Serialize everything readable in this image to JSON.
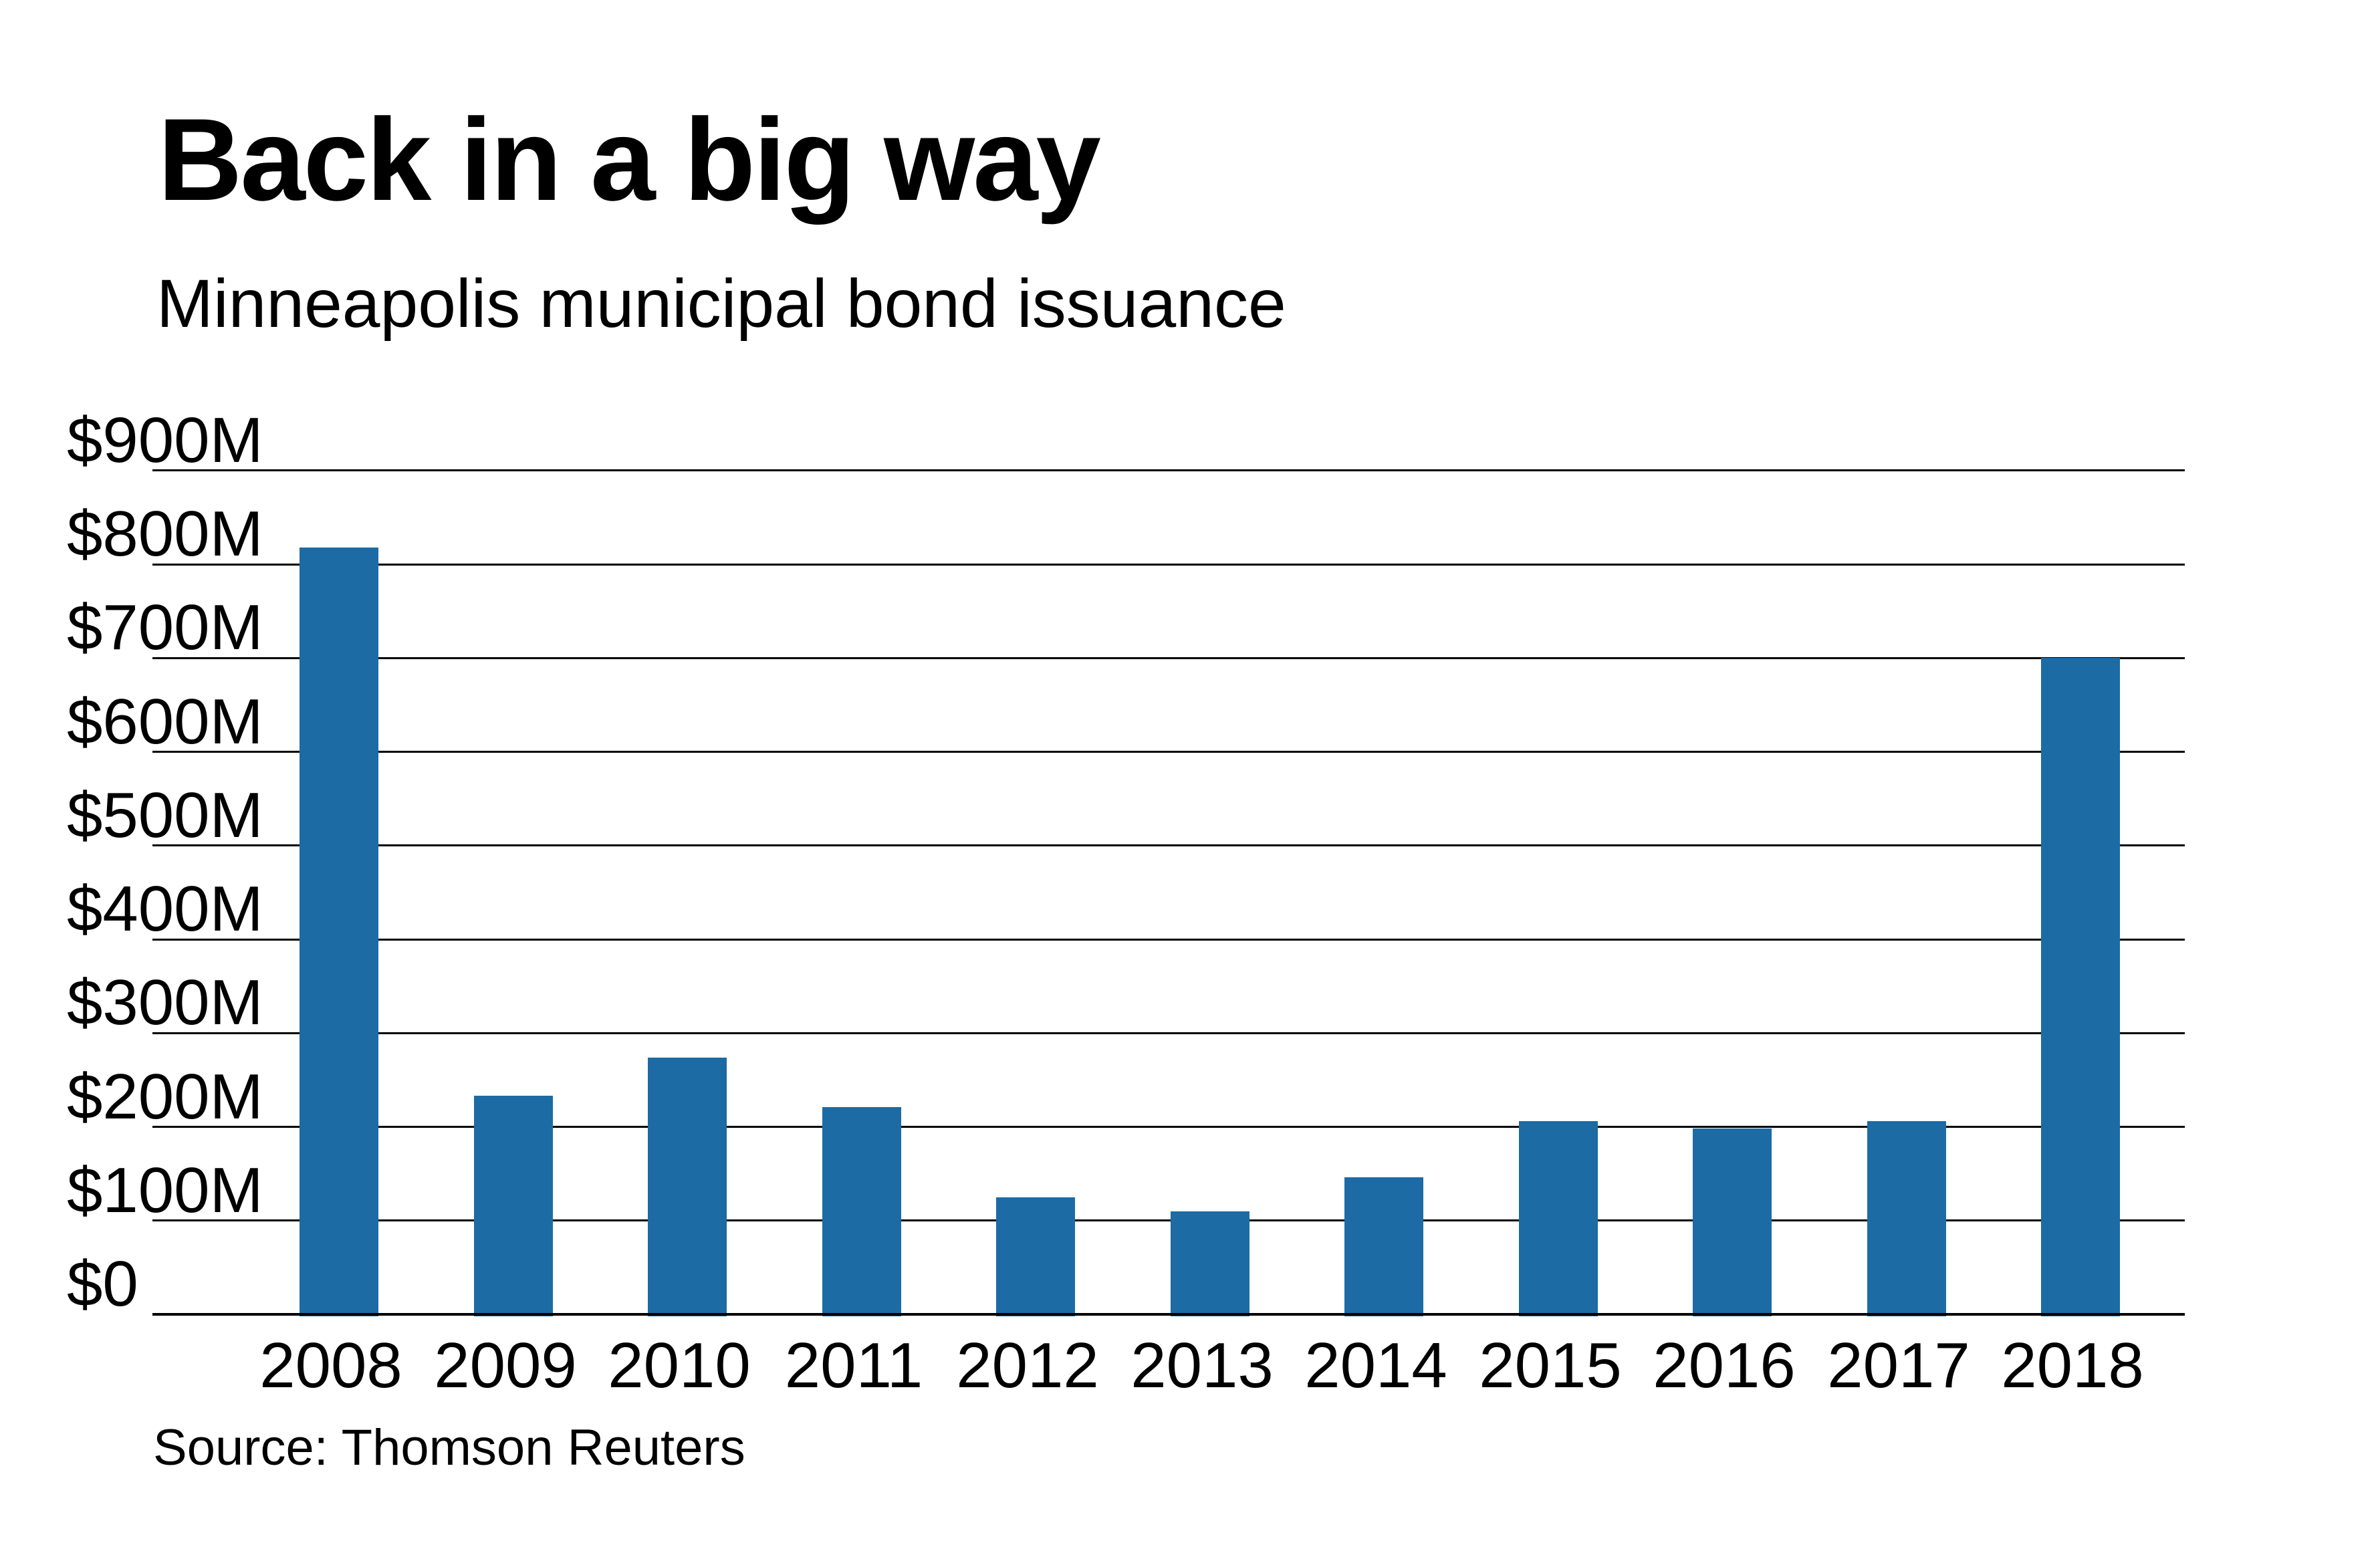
{
  "header": {
    "title": "Back in a big way",
    "subtitle": "Minneapolis municipal bond issuance"
  },
  "footer": {
    "source": "Source: Thomson Reuters"
  },
  "chart_data": {
    "type": "bar",
    "title": "Back in a big way",
    "subtitle": "Minneapolis municipal bond issuance",
    "source": "Source: Thomson Reuters",
    "categories": [
      "2008",
      "2009",
      "2010",
      "2011",
      "2012",
      "2013",
      "2014",
      "2015",
      "2016",
      "2017",
      "2018"
    ],
    "values": [
      818,
      233,
      274,
      221,
      125,
      110,
      146,
      206,
      198,
      206,
      700
    ],
    "unit": "millions of dollars",
    "xlabel": "",
    "ylabel": "",
    "ylim": [
      0,
      900
    ],
    "ytick_interval": 100,
    "ytick_labels": [
      "$0",
      "$100M",
      "$200M",
      "$300M",
      "$400M",
      "$500M",
      "$600M",
      "$700M",
      "$800M",
      "$900M"
    ],
    "grid": "horizontal",
    "legend": "none",
    "bar_color": "#1c6ba4",
    "axis_color": "#000000",
    "text_color": "#000000",
    "background": "#ffffff"
  }
}
